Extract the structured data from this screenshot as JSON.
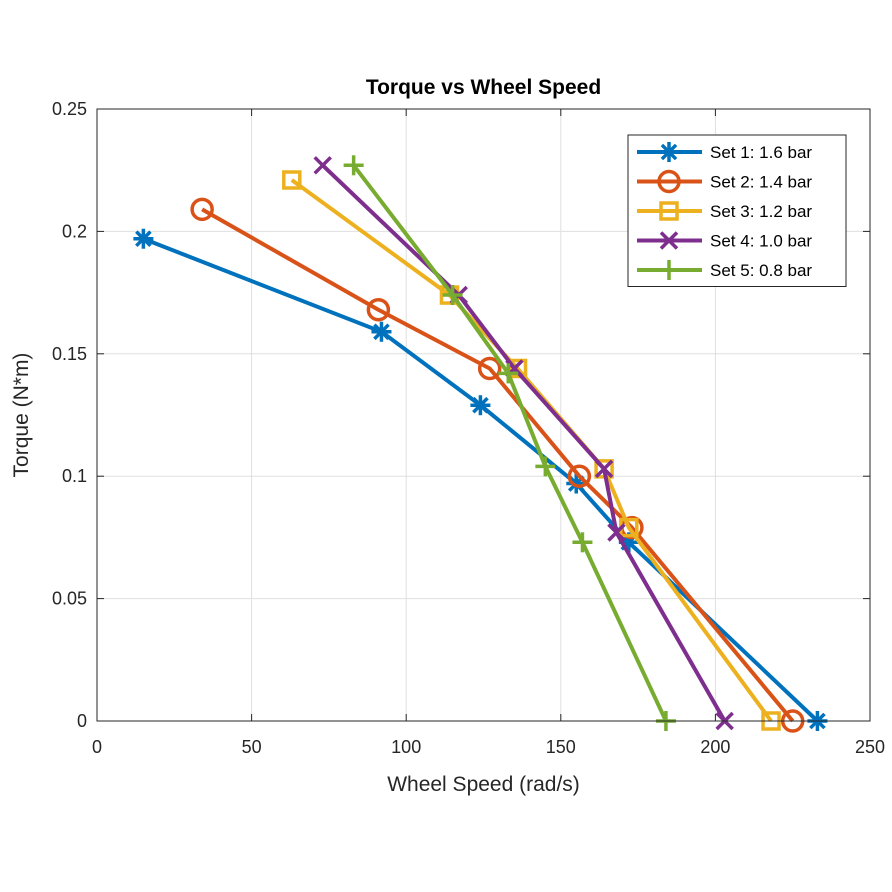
{
  "chart_data": {
    "type": "line",
    "title": "Torque vs Wheel Speed",
    "xlabel": "Wheel Speed (rad/s)",
    "ylabel": "Torque (N*m)",
    "xlim": [
      0,
      250
    ],
    "ylim": [
      0,
      0.25
    ],
    "xticks": [
      "0",
      "50",
      "100",
      "150",
      "200",
      "250"
    ],
    "yticks": [
      "0",
      "0.05",
      "0.1",
      "0.15",
      "0.2",
      "0.25"
    ],
    "grid": true,
    "legend_position": "top-right",
    "series": [
      {
        "name": "Set 1: 1.6 bar",
        "color": "#0072BD",
        "marker": "asterisk",
        "points": [
          [
            15,
            0.197
          ],
          [
            92,
            0.159
          ],
          [
            124,
            0.129
          ],
          [
            155,
            0.097
          ],
          [
            172,
            0.073
          ],
          [
            233,
            0.0
          ]
        ]
      },
      {
        "name": "Set 2: 1.4 bar",
        "color": "#D95319",
        "marker": "circle",
        "points": [
          [
            34,
            0.209
          ],
          [
            91,
            0.168
          ],
          [
            127,
            0.144
          ],
          [
            156,
            0.1
          ],
          [
            173,
            0.079
          ],
          [
            225,
            0.0
          ]
        ]
      },
      {
        "name": "Set 3: 1.2 bar",
        "color": "#EDB120",
        "marker": "square",
        "points": [
          [
            63,
            0.221
          ],
          [
            114,
            0.174
          ],
          [
            136,
            0.144
          ],
          [
            164,
            0.103
          ],
          [
            172,
            0.079
          ],
          [
            218,
            0.0
          ]
        ]
      },
      {
        "name": "Set 4: 1.0 bar",
        "color": "#7E2F8E",
        "marker": "cross",
        "points": [
          [
            73,
            0.227
          ],
          [
            117,
            0.174
          ],
          [
            135,
            0.144
          ],
          [
            164,
            0.103
          ],
          [
            168,
            0.077
          ],
          [
            203,
            0.0
          ]
        ]
      },
      {
        "name": "Set 5: 0.8 bar",
        "color": "#77AC30",
        "marker": "plus",
        "points": [
          [
            83,
            0.227
          ],
          [
            115,
            0.174
          ],
          [
            133,
            0.142
          ],
          [
            145,
            0.104
          ],
          [
            157,
            0.073
          ],
          [
            184,
            0.0
          ]
        ]
      }
    ]
  }
}
